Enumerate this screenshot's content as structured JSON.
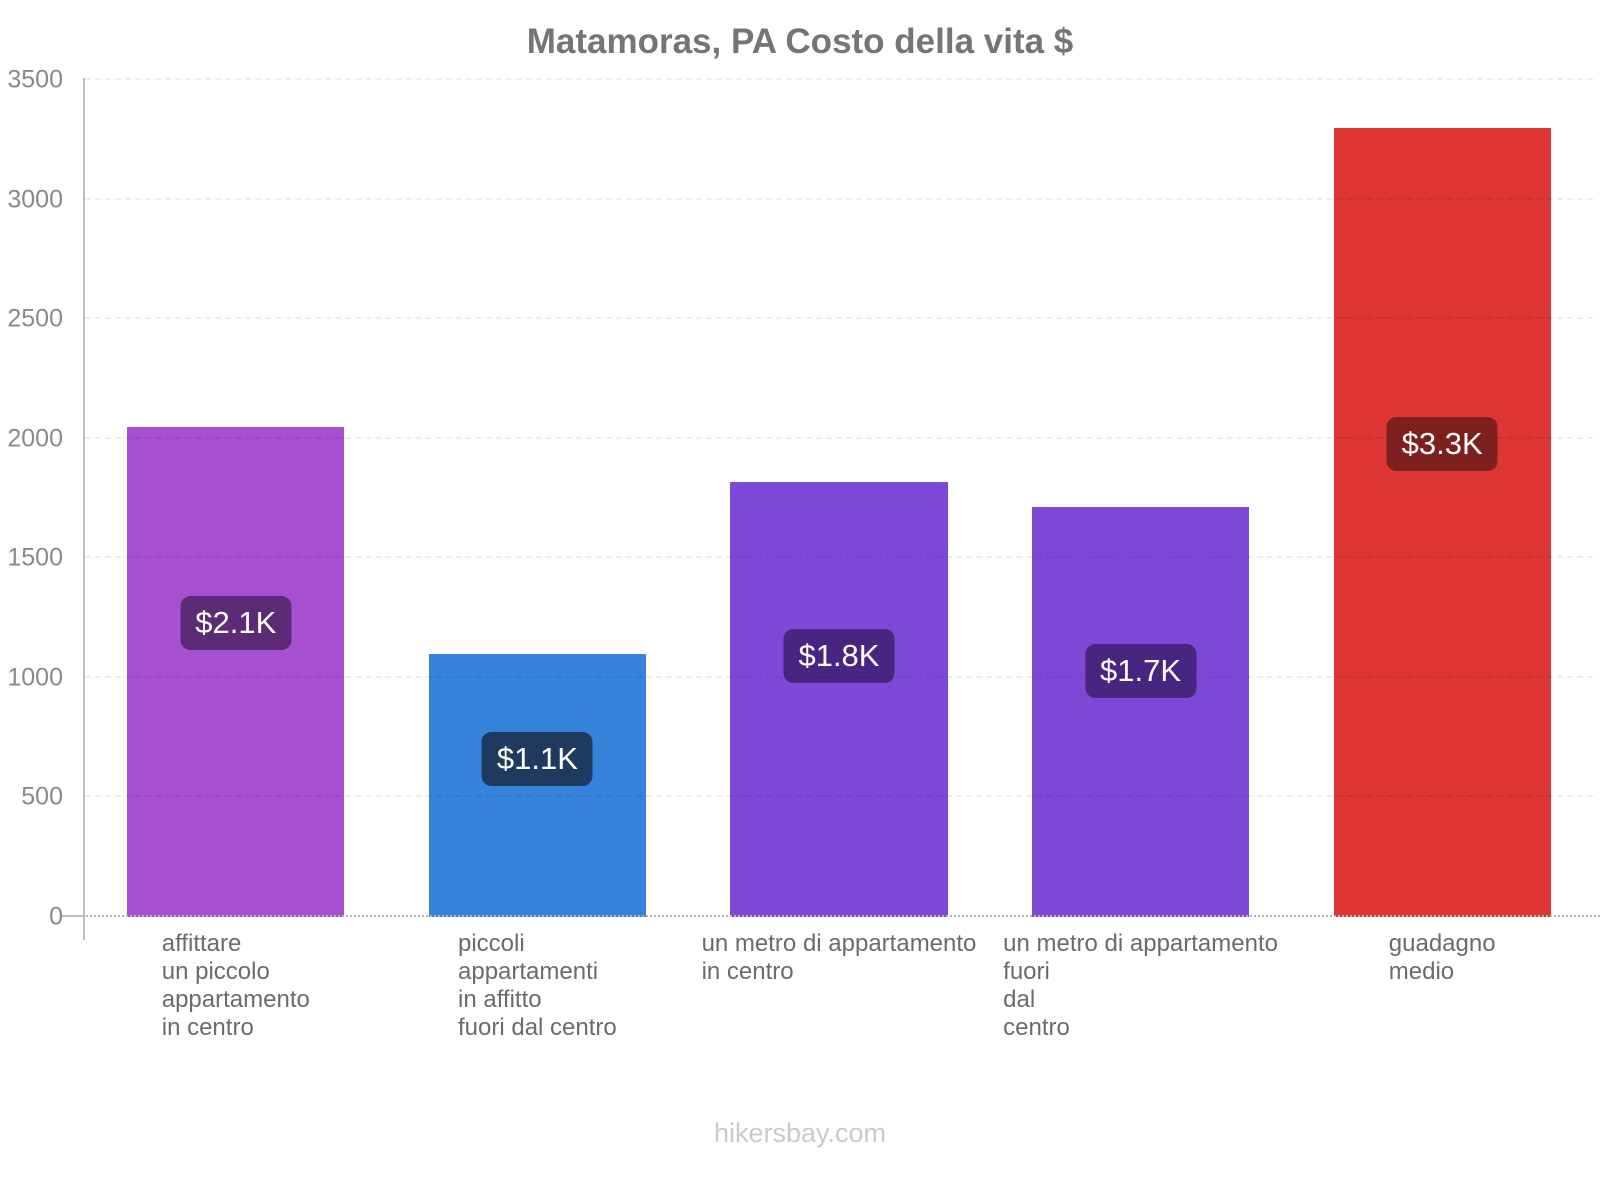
{
  "chart": {
    "footer": "hikersbay.com"
  },
  "chart_data": {
    "type": "bar",
    "title": "Matamoras, PA Costo della vita $",
    "xlabel": "",
    "ylabel": "",
    "categories": [
      "affittare\nun piccolo\nappartamento\nin centro",
      "piccoli\nappartamenti\nin affitto\nfuori dal centro",
      "un metro di appartamento\nin centro",
      "un metro di appartamento\nfuori\ndal\ncentro",
      "guadagno\nmedio"
    ],
    "values": [
      2050,
      1100,
      1820,
      1715,
      3300
    ],
    "value_labels": [
      "$2.1K",
      "$1.1K",
      "$1.8K",
      "$1.7K",
      "$3.3K"
    ],
    "bar_colors": [
      "#a64fd0",
      "#3582da",
      "#7d48d6",
      "#7d48d6",
      "#dd3634"
    ],
    "badge_colors": [
      "#5b2b76",
      "#1e3b5f",
      "#472581",
      "#472581",
      "#7d201e"
    ],
    "ylim": [
      0,
      3500
    ],
    "yticks": [
      0,
      500,
      1000,
      1500,
      2000,
      2500,
      3000,
      3500
    ],
    "grid": "faint dashed horizontal lines, visible mostly over bars",
    "legend_position": "none",
    "axis_color": "#bdbdbd",
    "title_color": "#757575",
    "tick_label_color": "#8a8a8a",
    "category_label_color": "#6b6b6b",
    "footer_color": "#c9c9d0"
  }
}
